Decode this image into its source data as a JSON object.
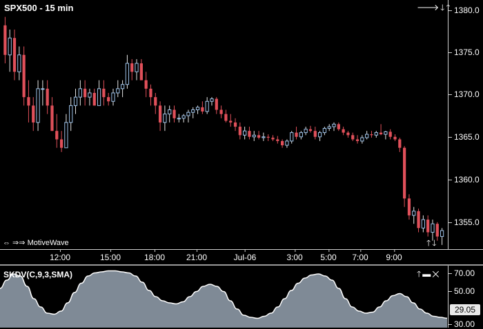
{
  "chart": {
    "title": "SPX500 - 15 min",
    "watermark": "MotiveWave",
    "top_controls": "🡒🡓🡑",
    "bottom_controls": "🡑🡓",
    "nav_arrows": "⇔ ⇒⇒"
  },
  "price_axis": {
    "ticks": [
      "1380.0",
      "1375.0",
      "1370.0",
      "1365.0",
      "1360.0",
      "1355.0"
    ]
  },
  "time_axis": {
    "ticks": [
      "12:00",
      "15:00",
      "18:00",
      "21:00",
      "Jul-06",
      "3:00",
      "5:00",
      "7:00",
      "9:00"
    ]
  },
  "indicator": {
    "title": "SKDV(C,9,3,SMA)",
    "ticks": [
      "70.00",
      "50.00",
      "30.00"
    ],
    "current_value": "29.05",
    "controls": "🡑▬✕"
  },
  "colors": {
    "up": "#9ec3ea",
    "down": "#e0505a",
    "indicator_fill": "#7f8a96",
    "indicator_line": "#ffffff"
  },
  "chart_data": {
    "type": "candlestick",
    "title": "SPX500 - 15 min",
    "ylim": [
      1352,
      1381.5
    ],
    "series": [
      {
        "name": "SPX500",
        "values": [
          [
            1378.5,
            1379.5,
            1374,
            1375
          ],
          [
            1375,
            1378,
            1373,
            1377
          ],
          [
            1377,
            1378,
            1372,
            1373
          ],
          [
            1373,
            1376,
            1372,
            1375
          ],
          [
            1375,
            1376,
            1369,
            1370
          ],
          [
            1370,
            1372,
            1367,
            1369
          ],
          [
            1369,
            1370,
            1366,
            1367
          ],
          [
            1367,
            1372,
            1366,
            1371
          ],
          [
            1371,
            1372,
            1369,
            1371
          ],
          [
            1371,
            1372,
            1368,
            1369
          ],
          [
            1369,
            1370,
            1366,
            1366
          ],
          [
            1366,
            1368,
            1364,
            1365
          ],
          [
            1365,
            1366,
            1363.5,
            1364
          ],
          [
            1364,
            1368,
            1364,
            1367
          ],
          [
            1367,
            1370,
            1366,
            1369
          ],
          [
            1369,
            1371,
            1368,
            1370
          ],
          [
            1370,
            1372,
            1369,
            1371
          ],
          [
            1371,
            1372,
            1369,
            1370
          ],
          [
            1370,
            1371,
            1369,
            1370.5
          ],
          [
            1370.5,
            1371,
            1369,
            1369
          ],
          [
            1369,
            1372,
            1369,
            1371
          ],
          [
            1371,
            1372,
            1369,
            1370
          ],
          [
            1370,
            1370.5,
            1369,
            1369.5
          ],
          [
            1369.5,
            1371,
            1369,
            1370.5
          ],
          [
            1370.5,
            1372,
            1370,
            1371
          ],
          [
            1371,
            1372,
            1370,
            1371.5
          ],
          [
            1371.5,
            1375,
            1371,
            1374
          ],
          [
            1374,
            1374.5,
            1372,
            1373
          ],
          [
            1373,
            1374.5,
            1372,
            1374
          ],
          [
            1374,
            1374.5,
            1372,
            1372
          ],
          [
            1372,
            1373,
            1370,
            1371
          ],
          [
            1371,
            1371.5,
            1369,
            1370
          ],
          [
            1370,
            1370.5,
            1368,
            1369
          ],
          [
            1369,
            1369.5,
            1366,
            1367
          ],
          [
            1367,
            1369,
            1366,
            1368
          ],
          [
            1368,
            1369,
            1367,
            1368.5
          ],
          [
            1368.5,
            1369,
            1367,
            1367.5
          ],
          [
            1367.5,
            1368,
            1367,
            1367.5
          ],
          [
            1367.5,
            1368,
            1367,
            1367.8
          ],
          [
            1367.8,
            1368.5,
            1367,
            1368.2
          ],
          [
            1368.2,
            1368.8,
            1367.5,
            1368.5
          ],
          [
            1368.5,
            1369,
            1368,
            1368.8
          ],
          [
            1368.8,
            1369.5,
            1368,
            1368.3
          ],
          [
            1368.3,
            1370,
            1368,
            1369.5
          ],
          [
            1369.5,
            1370,
            1369,
            1369.8
          ],
          [
            1369.8,
            1370,
            1368,
            1368.5
          ],
          [
            1368.5,
            1369,
            1367.5,
            1368
          ],
          [
            1368,
            1368.5,
            1367,
            1367.2
          ],
          [
            1367.2,
            1368,
            1366.5,
            1367
          ],
          [
            1367,
            1367.5,
            1366,
            1366.5
          ],
          [
            1366.5,
            1367,
            1365,
            1365.5
          ],
          [
            1365.5,
            1366.5,
            1365,
            1366
          ],
          [
            1366,
            1366.5,
            1365,
            1365.3
          ],
          [
            1365.3,
            1366,
            1364.8,
            1365.5
          ],
          [
            1365.5,
            1366,
            1365,
            1365.2
          ],
          [
            1365.2,
            1365.8,
            1364.8,
            1365.3
          ],
          [
            1365.3,
            1365.6,
            1364.8,
            1365.2
          ],
          [
            1365.2,
            1365.5,
            1364.8,
            1365
          ],
          [
            1365,
            1365.4,
            1364.5,
            1364.8
          ],
          [
            1364.8,
            1365,
            1364,
            1364.3
          ],
          [
            1364.3,
            1365,
            1364,
            1364.8
          ],
          [
            1364.8,
            1366,
            1364.5,
            1365.8
          ],
          [
            1365.8,
            1366.5,
            1365,
            1365.3
          ],
          [
            1365.3,
            1366,
            1365,
            1365.8
          ],
          [
            1365.8,
            1366.5,
            1365.5,
            1366.2
          ],
          [
            1366.2,
            1366.6,
            1365.8,
            1366
          ],
          [
            1366,
            1366.5,
            1365,
            1365.3
          ],
          [
            1365.3,
            1366,
            1364.8,
            1365.8
          ],
          [
            1365.8,
            1366.5,
            1365.5,
            1366.3
          ],
          [
            1366.3,
            1366.8,
            1366,
            1366.5
          ],
          [
            1366.5,
            1367,
            1366,
            1366.8
          ],
          [
            1366.8,
            1367,
            1366,
            1366.2
          ],
          [
            1366.2,
            1366.5,
            1365.5,
            1365.8
          ],
          [
            1365.8,
            1366,
            1365.2,
            1365.5
          ],
          [
            1365.5,
            1365.8,
            1364.8,
            1365
          ],
          [
            1365,
            1365.5,
            1364.5,
            1364.8
          ],
          [
            1364.8,
            1365.5,
            1364.5,
            1365.2
          ],
          [
            1365.2,
            1366,
            1365,
            1365.6
          ],
          [
            1365.6,
            1366,
            1365.2,
            1365.5
          ],
          [
            1365.5,
            1366,
            1365.2,
            1365.8
          ],
          [
            1365.8,
            1366.8,
            1365.5,
            1365.6
          ],
          [
            1365.6,
            1366,
            1365,
            1365.9
          ],
          [
            1365.9,
            1366.2,
            1365,
            1365.3
          ],
          [
            1365.3,
            1365.6,
            1364.8,
            1365
          ],
          [
            1365,
            1365.2,
            1363.5,
            1364
          ],
          [
            1364,
            1364.2,
            1357,
            1358
          ],
          [
            1358,
            1358.5,
            1355.5,
            1356
          ],
          [
            1356,
            1357,
            1355,
            1356.5
          ],
          [
            1356.5,
            1356.8,
            1354,
            1354.5
          ],
          [
            1354.5,
            1356,
            1354,
            1355.5
          ],
          [
            1355.5,
            1356,
            1353.5,
            1354
          ],
          [
            1354,
            1355.5,
            1353,
            1355
          ],
          [
            1355,
            1355.2,
            1353,
            1353.5
          ],
          [
            1353.5,
            1354.5,
            1352.5,
            1354.2
          ]
        ]
      }
    ],
    "x_ticks": [
      "12:00",
      "15:00",
      "18:00",
      "21:00",
      "Jul-06",
      "3:00",
      "5:00",
      "7:00",
      "9:00"
    ],
    "y_ticks": [
      1380,
      1375,
      1370,
      1365,
      1360,
      1355
    ],
    "indicator": {
      "name": "SKDV(C,9,3,SMA)",
      "ylim": [
        20,
        80
      ],
      "values": [
        58,
        66,
        72,
        70,
        60,
        48,
        40,
        34,
        33,
        36,
        44,
        54,
        63,
        70,
        73,
        74,
        75,
        75,
        74,
        73,
        70,
        64,
        56,
        50,
        46,
        44,
        43,
        45,
        50,
        55,
        60,
        62,
        60,
        55,
        46,
        38,
        32,
        30,
        29,
        31,
        34,
        40,
        48,
        56,
        63,
        68,
        71,
        72,
        70,
        66,
        58,
        48,
        40,
        36,
        34,
        35,
        40,
        46,
        51,
        53,
        50,
        44,
        38,
        34,
        31,
        30,
        29.05
      ]
    }
  }
}
